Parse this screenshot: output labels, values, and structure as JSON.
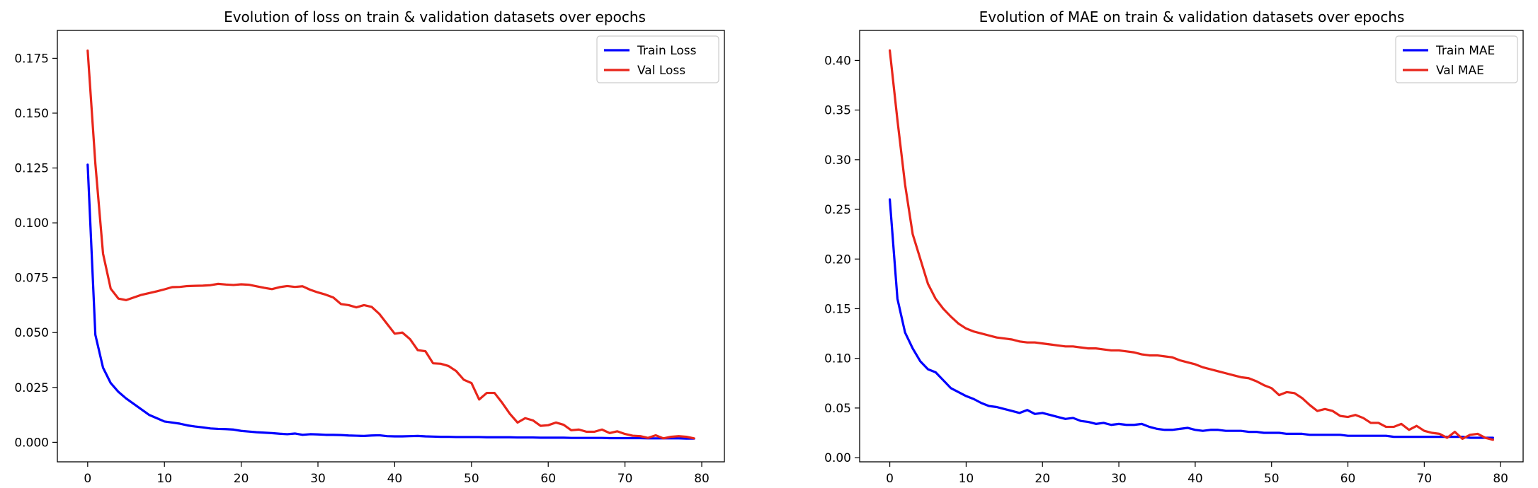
{
  "chart_data": [
    {
      "type": "line",
      "title": "Evolution of loss on train & validation datasets over epochs",
      "xlabel": "",
      "ylabel": "",
      "xlim": [
        -3.95,
        82.95
      ],
      "ylim": [
        -0.0089,
        0.1877
      ],
      "xticks": [
        0,
        10,
        20,
        30,
        40,
        50,
        60,
        70,
        80
      ],
      "xtick_labels": [
        "0",
        "10",
        "20",
        "30",
        "40",
        "50",
        "60",
        "70",
        "80"
      ],
      "yticks": [
        0.0,
        0.025,
        0.05,
        0.075,
        0.1,
        0.125,
        0.15,
        0.175
      ],
      "ytick_labels": [
        "0.000",
        "0.025",
        "0.050",
        "0.075",
        "0.100",
        "0.125",
        "0.150",
        "0.175"
      ],
      "grid": false,
      "legend_position": "upper right",
      "x": [
        0,
        1,
        2,
        3,
        4,
        5,
        6,
        7,
        8,
        9,
        10,
        11,
        12,
        13,
        14,
        15,
        16,
        17,
        18,
        19,
        20,
        21,
        22,
        23,
        24,
        25,
        26,
        27,
        28,
        29,
        30,
        31,
        32,
        33,
        34,
        35,
        36,
        37,
        38,
        39,
        40,
        41,
        42,
        43,
        44,
        45,
        46,
        47,
        48,
        49,
        50,
        51,
        52,
        53,
        54,
        55,
        56,
        57,
        58,
        59,
        60,
        61,
        62,
        63,
        64,
        65,
        66,
        67,
        68,
        69,
        70,
        71,
        72,
        73,
        74,
        75,
        76,
        77,
        78,
        79
      ],
      "series": [
        {
          "name": "Train Loss",
          "color": "#0000ff",
          "values": [
            0.1265,
            0.049,
            0.034,
            0.027,
            0.023,
            0.02,
            0.0175,
            0.015,
            0.0125,
            0.011,
            0.0095,
            0.009,
            0.0085,
            0.0077,
            0.0072,
            0.0068,
            0.0063,
            0.0061,
            0.006,
            0.0058,
            0.0052,
            0.0049,
            0.0046,
            0.0044,
            0.0042,
            0.0039,
            0.0037,
            0.004,
            0.0034,
            0.0037,
            0.0036,
            0.0034,
            0.0034,
            0.0033,
            0.0031,
            0.003,
            0.0029,
            0.0031,
            0.0032,
            0.0028,
            0.0027,
            0.0027,
            0.0028,
            0.0029,
            0.0027,
            0.0026,
            0.0025,
            0.0025,
            0.0024,
            0.0024,
            0.0024,
            0.0024,
            0.0023,
            0.0023,
            0.0023,
            0.0023,
            0.0022,
            0.0022,
            0.0022,
            0.0021,
            0.0021,
            0.0021,
            0.0021,
            0.002,
            0.002,
            0.002,
            0.002,
            0.002,
            0.0019,
            0.0019,
            0.0019,
            0.0019,
            0.0019,
            0.0018,
            0.0018,
            0.0018,
            0.0018,
            0.0018,
            0.0017,
            0.0017
          ]
        },
        {
          "name": "Val Loss",
          "color": "#e8251a",
          "values": [
            0.1785,
            0.127,
            0.086,
            0.07,
            0.0655,
            0.0648,
            0.066,
            0.0672,
            0.068,
            0.0688,
            0.0697,
            0.0707,
            0.0708,
            0.0712,
            0.0713,
            0.0714,
            0.0716,
            0.0722,
            0.0719,
            0.0717,
            0.072,
            0.0718,
            0.0711,
            0.0704,
            0.0698,
            0.0707,
            0.0712,
            0.0708,
            0.0711,
            0.0695,
            0.0683,
            0.0673,
            0.066,
            0.063,
            0.0625,
            0.0615,
            0.0625,
            0.0617,
            0.0585,
            0.054,
            0.0495,
            0.05,
            0.047,
            0.042,
            0.0415,
            0.036,
            0.0358,
            0.0348,
            0.0325,
            0.0285,
            0.027,
            0.0195,
            0.0225,
            0.0225,
            0.018,
            0.013,
            0.009,
            0.011,
            0.01,
            0.0075,
            0.0078,
            0.009,
            0.008,
            0.0055,
            0.0058,
            0.0048,
            0.0048,
            0.0058,
            0.0042,
            0.005,
            0.0038,
            0.003,
            0.0028,
            0.002,
            0.0032,
            0.0018,
            0.0025,
            0.0028,
            0.0025,
            0.0018
          ]
        }
      ]
    },
    {
      "type": "line",
      "title": "Evolution of MAE on train & validation datasets over epochs",
      "xlabel": "",
      "ylabel": "",
      "xlim": [
        -3.95,
        82.95
      ],
      "ylim": [
        -0.0042,
        0.4302
      ],
      "xticks": [
        0,
        10,
        20,
        30,
        40,
        50,
        60,
        70,
        80
      ],
      "xtick_labels": [
        "0",
        "10",
        "20",
        "30",
        "40",
        "50",
        "60",
        "70",
        "80"
      ],
      "yticks": [
        0.0,
        0.05,
        0.1,
        0.15,
        0.2,
        0.25,
        0.3,
        0.35,
        0.4
      ],
      "ytick_labels": [
        "0.00",
        "0.05",
        "0.10",
        "0.15",
        "0.20",
        "0.25",
        "0.30",
        "0.35",
        "0.40"
      ],
      "grid": false,
      "legend_position": "upper right",
      "x": [
        0,
        1,
        2,
        3,
        4,
        5,
        6,
        7,
        8,
        9,
        10,
        11,
        12,
        13,
        14,
        15,
        16,
        17,
        18,
        19,
        20,
        21,
        22,
        23,
        24,
        25,
        26,
        27,
        28,
        29,
        30,
        31,
        32,
        33,
        34,
        35,
        36,
        37,
        38,
        39,
        40,
        41,
        42,
        43,
        44,
        45,
        46,
        47,
        48,
        49,
        50,
        51,
        52,
        53,
        54,
        55,
        56,
        57,
        58,
        59,
        60,
        61,
        62,
        63,
        64,
        65,
        66,
        67,
        68,
        69,
        70,
        71,
        72,
        73,
        74,
        75,
        76,
        77,
        78,
        79
      ],
      "series": [
        {
          "name": "Train MAE",
          "color": "#0000ff",
          "values": [
            0.26,
            0.16,
            0.126,
            0.11,
            0.097,
            0.089,
            0.086,
            0.078,
            0.07,
            0.066,
            0.062,
            0.059,
            0.055,
            0.052,
            0.051,
            0.049,
            0.047,
            0.045,
            0.048,
            0.044,
            0.045,
            0.043,
            0.041,
            0.039,
            0.04,
            0.037,
            0.036,
            0.034,
            0.035,
            0.033,
            0.034,
            0.033,
            0.033,
            0.034,
            0.031,
            0.029,
            0.028,
            0.028,
            0.029,
            0.03,
            0.028,
            0.027,
            0.028,
            0.028,
            0.027,
            0.027,
            0.027,
            0.026,
            0.026,
            0.025,
            0.025,
            0.025,
            0.024,
            0.024,
            0.024,
            0.023,
            0.023,
            0.023,
            0.023,
            0.023,
            0.022,
            0.022,
            0.022,
            0.022,
            0.022,
            0.022,
            0.021,
            0.021,
            0.021,
            0.021,
            0.021,
            0.021,
            0.021,
            0.021,
            0.021,
            0.021,
            0.02,
            0.02,
            0.02,
            0.02
          ]
        },
        {
          "name": "Val MAE",
          "color": "#e8251a",
          "values": [
            0.41,
            0.34,
            0.275,
            0.225,
            0.2,
            0.175,
            0.16,
            0.15,
            0.142,
            0.135,
            0.13,
            0.127,
            0.125,
            0.123,
            0.121,
            0.12,
            0.119,
            0.117,
            0.116,
            0.116,
            0.115,
            0.114,
            0.113,
            0.112,
            0.112,
            0.111,
            0.11,
            0.11,
            0.109,
            0.108,
            0.108,
            0.107,
            0.106,
            0.104,
            0.103,
            0.103,
            0.102,
            0.101,
            0.098,
            0.096,
            0.094,
            0.091,
            0.089,
            0.087,
            0.085,
            0.083,
            0.081,
            0.08,
            0.077,
            0.073,
            0.07,
            0.063,
            0.066,
            0.065,
            0.06,
            0.053,
            0.047,
            0.049,
            0.047,
            0.042,
            0.041,
            0.043,
            0.04,
            0.035,
            0.035,
            0.031,
            0.031,
            0.034,
            0.028,
            0.032,
            0.027,
            0.025,
            0.024,
            0.02,
            0.026,
            0.019,
            0.023,
            0.024,
            0.02,
            0.018
          ]
        }
      ]
    }
  ],
  "panels": [
    {
      "title": "Evolution of loss on train & validation datasets over epochs"
    },
    {
      "title": "Evolution of MAE on train & validation datasets over epochs"
    }
  ]
}
